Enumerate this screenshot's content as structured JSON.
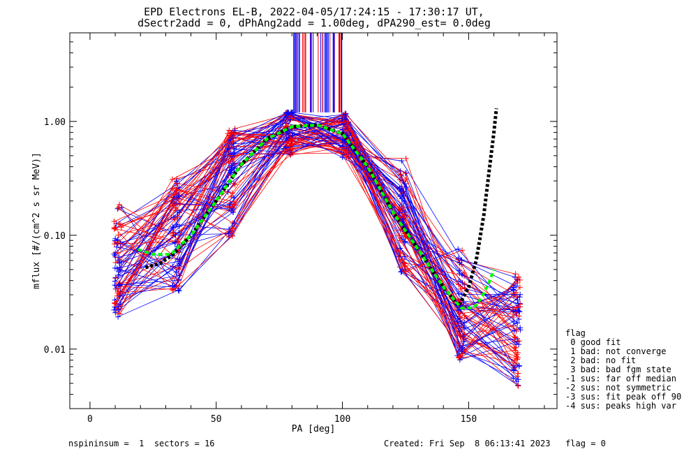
{
  "chart_data": {
    "type": "line",
    "title": "EPD Electrons EL-B, 2022-04-05/17:24:15 - 17:30:17 UT,",
    "subtitle": "dSectr2add = 0, dPhAng2add = 1.00deg, dPA290_est=   0.0deg",
    "xlabel": "PA [deg]",
    "ylabel": "mflux [#/(cm^2 s sr MeV)]",
    "xlim": [
      -8,
      185
    ],
    "ylim": [
      0.003,
      6.0
    ],
    "yscale": "log",
    "xticks": [
      {
        "v": 0,
        "label": "0"
      },
      {
        "v": 50,
        "label": "50"
      },
      {
        "v": 100,
        "label": "100"
      },
      {
        "v": 150,
        "label": "150"
      }
    ],
    "yticks": [
      {
        "v": 0.01,
        "label": "0.01"
      },
      {
        "v": 0.1,
        "label": "0.10"
      },
      {
        "v": 1.0,
        "label": "1.00"
      }
    ],
    "grid": false,
    "fit_curves": [
      {
        "color": "#000000",
        "dash": "4 3",
        "width": 5,
        "points": [
          [
            22,
            0.052
          ],
          [
            28,
            0.057
          ],
          [
            33,
            0.068
          ],
          [
            40,
            0.1
          ],
          [
            50,
            0.2
          ],
          [
            60,
            0.42
          ],
          [
            70,
            0.7
          ],
          [
            80,
            0.9
          ],
          [
            90,
            0.93
          ],
          [
            100,
            0.78
          ],
          [
            110,
            0.4
          ],
          [
            120,
            0.16
          ],
          [
            130,
            0.075
          ],
          [
            140,
            0.035
          ],
          [
            146,
            0.024
          ],
          [
            150,
            0.035
          ],
          [
            153,
            0.06
          ],
          [
            156,
            0.15
          ],
          [
            158,
            0.35
          ],
          [
            160,
            0.8
          ],
          [
            161,
            1.3
          ]
        ]
      },
      {
        "color": "#00ff00",
        "dash": "6 4",
        "width": 4,
        "points": [
          [
            19,
            0.075
          ],
          [
            25,
            0.068
          ],
          [
            32,
            0.068
          ],
          [
            40,
            0.1
          ],
          [
            50,
            0.2
          ],
          [
            60,
            0.42
          ],
          [
            70,
            0.7
          ],
          [
            80,
            0.9
          ],
          [
            90,
            0.93
          ],
          [
            100,
            0.78
          ],
          [
            110,
            0.4
          ],
          [
            120,
            0.16
          ],
          [
            130,
            0.075
          ],
          [
            140,
            0.035
          ],
          [
            147,
            0.023
          ],
          [
            152,
            0.023
          ],
          [
            155,
            0.028
          ],
          [
            158,
            0.038
          ],
          [
            160,
            0.05
          ]
        ]
      }
    ]
  },
  "legend": {
    "lines": [
      "flag",
      " 0 good fit",
      " 1 bad: not converge",
      " 2 bad: no fit",
      " 3 bad: bad fgm state",
      "-1 sus: far off median",
      "-2 sus: not symmetric",
      "-3 sus: fit peak off 90",
      "-4 sus: peaks high var"
    ]
  },
  "footer": {
    "left": "nspininsum =  1  sectors = 16",
    "right": "Created: Fri Sep  8 06:13:41 2023   flag = 0"
  },
  "colors": {
    "series_a": "#ff0000",
    "series_b": "#0000ff"
  }
}
